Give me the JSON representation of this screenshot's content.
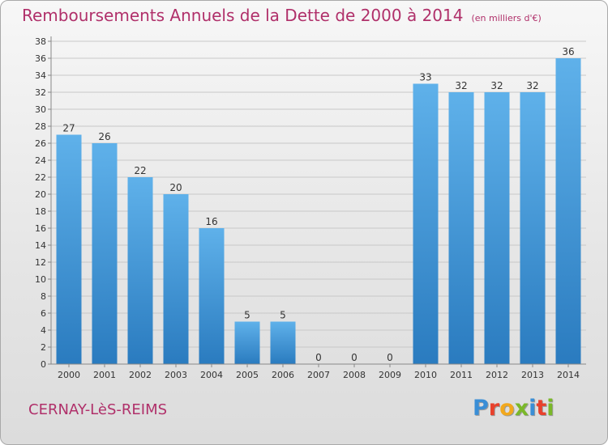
{
  "title": "Remboursements Annuels de la Dette de 2000 à 2014",
  "unit_note": "(en milliers d'€)",
  "commune": "CERNAY-LèS-REIMS",
  "brand": {
    "name": "Proxiti",
    "letter_colors": [
      "#3a8ed6",
      "#e8412c",
      "#f2a81d",
      "#7ab829",
      "#3a8ed6",
      "#e8412c",
      "#7ab829"
    ]
  },
  "colors": {
    "bar_top": "#5fb1ea",
    "bar_bottom": "#2a7bbf",
    "title": "#b0306a",
    "grid": "#c8c8c8"
  },
  "chart_data": {
    "type": "bar",
    "categories": [
      "2000",
      "2001",
      "2002",
      "2003",
      "2004",
      "2005",
      "2006",
      "2007",
      "2008",
      "2009",
      "2010",
      "2011",
      "2012",
      "2013",
      "2014"
    ],
    "values": [
      27,
      26,
      22,
      20,
      16,
      5,
      5,
      0,
      0,
      0,
      33,
      32,
      32,
      32,
      36
    ],
    "data_labels": [
      "27",
      "26",
      "22",
      "20",
      "16",
      "5",
      "5",
      "0",
      "0",
      "0",
      "33",
      "32",
      "32",
      "32",
      "36"
    ],
    "ylim": [
      0,
      38
    ],
    "yticks": [
      0,
      2,
      4,
      6,
      8,
      10,
      12,
      14,
      16,
      18,
      20,
      22,
      24,
      26,
      28,
      30,
      32,
      34,
      36,
      38
    ],
    "grid": true,
    "xlabel": "",
    "ylabel": ""
  }
}
